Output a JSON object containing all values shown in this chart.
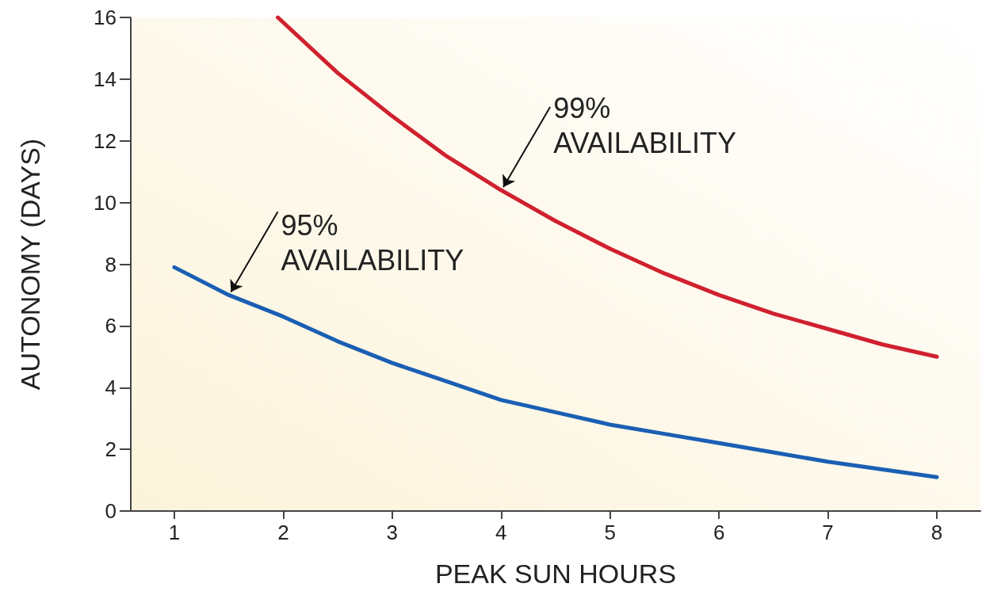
{
  "chart_data": {
    "type": "line",
    "xlabel": "PEAK SUN HOURS",
    "ylabel": "AUTONOMY (DAYS)",
    "xlim": [
      0.6,
      8.4
    ],
    "xticks": [
      1,
      2,
      3,
      4,
      5,
      6,
      7,
      8
    ],
    "ylim": [
      0,
      16
    ],
    "yticks": [
      0,
      2,
      4,
      6,
      8,
      10,
      12,
      14,
      16
    ],
    "grid": false,
    "marker": "none",
    "line_style": "solid",
    "series": [
      {
        "color": "#d0202e",
        "x": [
          1.95,
          2.5,
          3,
          3.5,
          4,
          4.5,
          5,
          5.5,
          6,
          6.5,
          7,
          7.5,
          8
        ],
        "values": [
          16,
          14.2,
          12.8,
          11.5,
          10.4,
          9.4,
          8.5,
          7.7,
          7.0,
          6.4,
          5.9,
          5.4,
          5.0
        ]
      },
      {
        "color": "#1a5fb4",
        "x": [
          1,
          1.5,
          2,
          2.5,
          3,
          3.5,
          4,
          4.5,
          5,
          5.5,
          6,
          6.5,
          7,
          7.5,
          8
        ],
        "values": [
          7.9,
          7.0,
          6.3,
          5.5,
          4.8,
          4.2,
          3.6,
          3.2,
          2.8,
          2.5,
          2.2,
          1.9,
          1.6,
          1.35,
          1.1
        ]
      }
    ],
    "annotations": [
      {
        "text": "99%\nAVAILABILITY",
        "x": 4,
        "y": 10.4
      },
      {
        "text": "95%\nAVAILABILITY",
        "x": 1.5,
        "y": 7.0
      }
    ]
  }
}
